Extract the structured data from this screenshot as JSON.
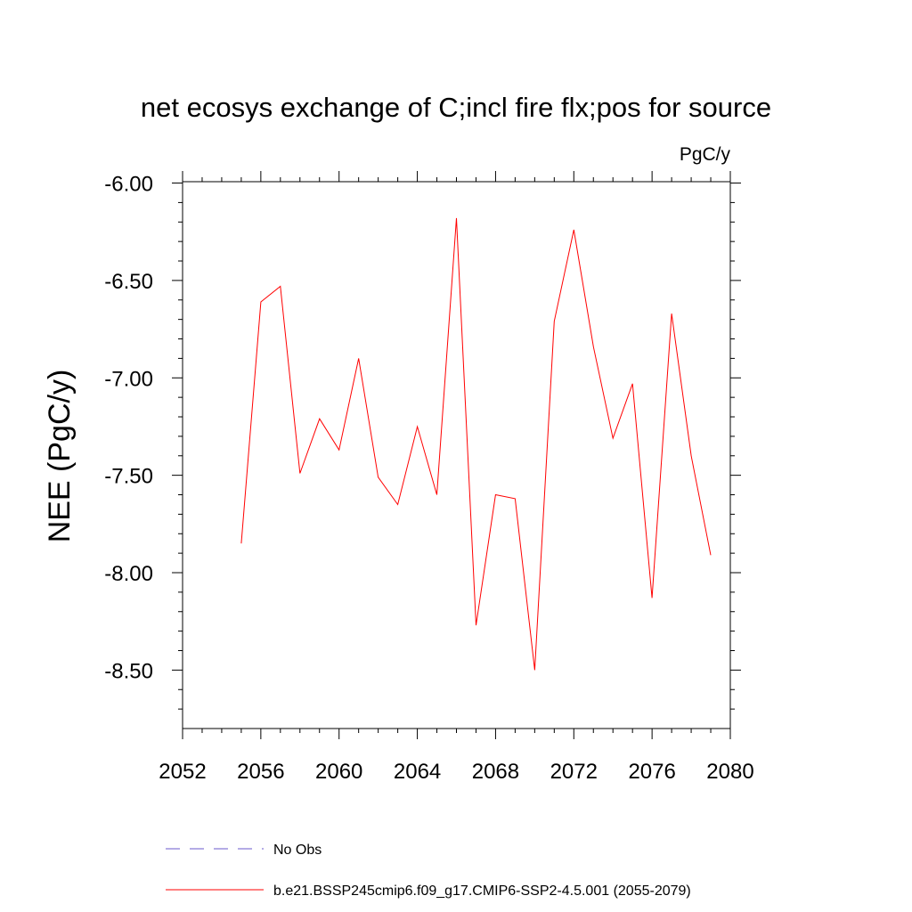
{
  "chart_data": {
    "type": "line",
    "title": "net ecosys exchange of C;incl fire flx;pos for source",
    "units": "PgC/y",
    "ylabel": "NEE  (PgC/y)",
    "xlabel": "",
    "xlim": [
      2052,
      2080
    ],
    "ylim": [
      -8.8,
      -5.993
    ],
    "x_ticks": [
      2052,
      2056,
      2060,
      2064,
      2068,
      2072,
      2076,
      2080
    ],
    "x_tick_labels": [
      "2052",
      "2056",
      "2060",
      "2064",
      "2068",
      "2072",
      "2076",
      "2080"
    ],
    "y_ticks": [
      -6.0,
      -6.5,
      -7.0,
      -7.5,
      -8.0,
      -8.5
    ],
    "y_tick_labels": [
      "-6.00",
      "-6.50",
      "-7.00",
      "-7.50",
      "-8.00",
      "-8.50"
    ],
    "grid": false,
    "series": [
      {
        "name": "No Obs",
        "color": "#6a5acd",
        "style": "dashed",
        "x": [],
        "y": []
      },
      {
        "name": "b.e21.BSSP245cmip6.f09_g17.CMIP6-SSP2-4.5.001 (2055-2079)",
        "color": "#ff0000",
        "style": "solid",
        "x": [
          2055,
          2056,
          2057,
          2058,
          2059,
          2060,
          2061,
          2062,
          2063,
          2064,
          2065,
          2066,
          2067,
          2068,
          2069,
          2070,
          2071,
          2072,
          2073,
          2074,
          2075,
          2076,
          2077,
          2078,
          2079
        ],
        "y": [
          -7.85,
          -6.61,
          -6.53,
          -7.49,
          -7.21,
          -7.37,
          -6.9,
          -7.51,
          -7.65,
          -7.25,
          -7.6,
          -6.18,
          -8.27,
          -7.6,
          -7.62,
          -8.5,
          -6.71,
          -6.24,
          -6.84,
          -7.31,
          -7.03,
          -8.13,
          -6.67,
          -7.4,
          -7.91
        ]
      }
    ],
    "legend_position": "bottom"
  }
}
